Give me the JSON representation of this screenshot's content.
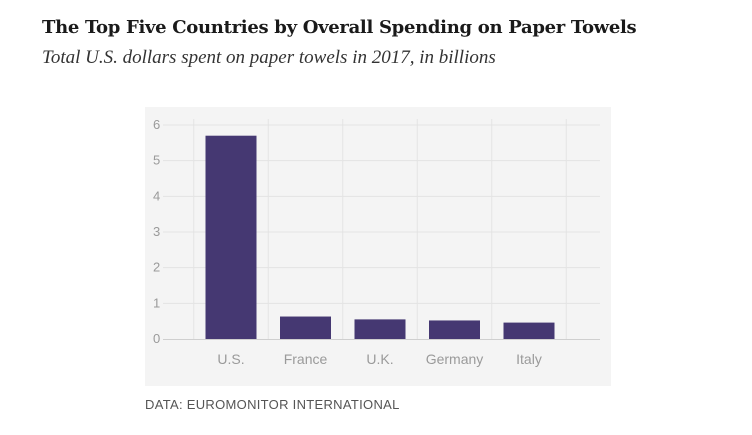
{
  "header": {
    "title": "The Top Five Countries by Overall Spending on Paper Towels",
    "subtitle": "Total U.S. dollars spent on paper towels in 2017, in billions"
  },
  "footer": {
    "source": "DATA: EUROMONITOR INTERNATIONAL"
  },
  "colors": {
    "bar": "#453872",
    "panel": "#f4f4f4",
    "grid": "#e3e3e3",
    "axis": "#cfcfcf"
  },
  "chart_data": {
    "type": "bar",
    "title": "The Top Five Countries by Overall Spending on Paper Towels",
    "subtitle": "Total U.S. dollars spent on paper towels in 2017, in billions",
    "categories": [
      "U.S.",
      "France",
      "U.K.",
      "Germany",
      "Italy"
    ],
    "values": [
      5.7,
      0.63,
      0.55,
      0.52,
      0.46
    ],
    "xlabel": "",
    "ylabel": "",
    "ylim": [
      0,
      6
    ],
    "yticks": [
      0,
      1,
      2,
      3,
      4,
      5,
      6
    ],
    "grid": true,
    "legend": "none"
  }
}
